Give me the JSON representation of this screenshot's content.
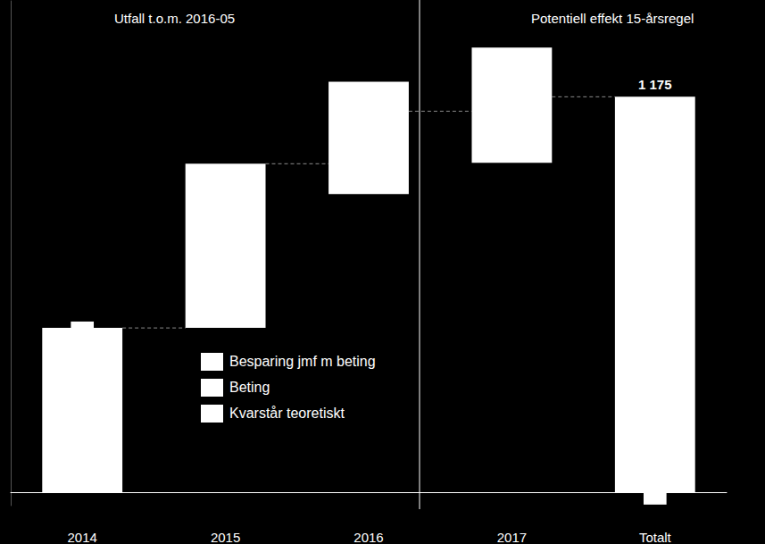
{
  "chart_data": {
    "type": "waterfall",
    "annotations": [
      "Utfall t.o.m. 2016-05",
      "Potentiell effekt 15-årsregel"
    ],
    "categories": [
      "2014",
      "2015",
      "2016",
      "2017",
      "Totalt"
    ],
    "low": [
      0,
      488,
      886,
      979,
      0
    ],
    "high": [
      488,
      976,
      1220,
      1321,
      1175
    ],
    "color": "#ffffff",
    "value_labels": [
      null,
      null,
      null,
      null,
      "1 175"
    ],
    "markers": [
      {
        "category": "2014",
        "low": 488,
        "high": 507
      },
      {
        "category": "Totalt",
        "low": -37,
        "high": 0
      }
    ],
    "connectors": [
      488,
      976,
      1132,
      1175
    ],
    "legend_labels": [
      "Besparing jmf m beting",
      "Beting",
      "Kvarstår teoretiskt"
    ],
    "ylim": [
      -40,
      1460
    ],
    "yticks": [],
    "tick_labels": "x",
    "grid": false
  }
}
